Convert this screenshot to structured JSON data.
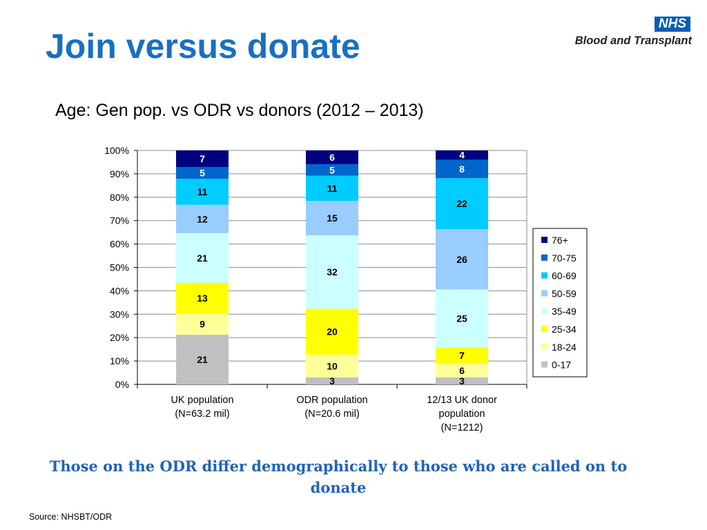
{
  "slide": {
    "title": "Join versus donate",
    "subtitle": "Age: Gen pop. vs ODR vs donors (2012 – 2013)",
    "logo": {
      "badge": "NHS",
      "text": "Blood and Transplant"
    },
    "footer": "Those on the ODR differ demographically to those who are called on to donate",
    "source": "Source: NHSBT/ODR"
  },
  "chart_data": {
    "type": "bar",
    "stacked": true,
    "percent_stacked": true,
    "title": "",
    "xlabel": "",
    "ylabel": "",
    "ylim": [
      0,
      100
    ],
    "yticks": [
      "0%",
      "10%",
      "20%",
      "30%",
      "40%",
      "50%",
      "60%",
      "70%",
      "80%",
      "90%",
      "100%"
    ],
    "grid": true,
    "legend_position": "right",
    "categories": [
      "UK population\n(N=63.2 mil)",
      "ODR population\n(N=20.6 mil)",
      "12/13 UK donor\npopulation\n(N=1212)"
    ],
    "series": [
      {
        "name": "0-17",
        "color": "#c0c0c0",
        "values": [
          21,
          3,
          3
        ]
      },
      {
        "name": "18-24",
        "color": "#ffff99",
        "values": [
          9,
          10,
          6
        ]
      },
      {
        "name": "25-34",
        "color": "#ffff00",
        "values": [
          13,
          20,
          7
        ]
      },
      {
        "name": "35-49",
        "color": "#ccffff",
        "values": [
          21,
          32,
          25
        ]
      },
      {
        "name": "50-59",
        "color": "#99ccff",
        "values": [
          12,
          15,
          26
        ]
      },
      {
        "name": "60-69",
        "color": "#00ccff",
        "values": [
          11,
          11,
          22
        ]
      },
      {
        "name": "70-75",
        "color": "#0066cc",
        "values": [
          5,
          5,
          8
        ]
      },
      {
        "name": "76+",
        "color": "#000080",
        "values": [
          7,
          6,
          4
        ]
      }
    ]
  }
}
